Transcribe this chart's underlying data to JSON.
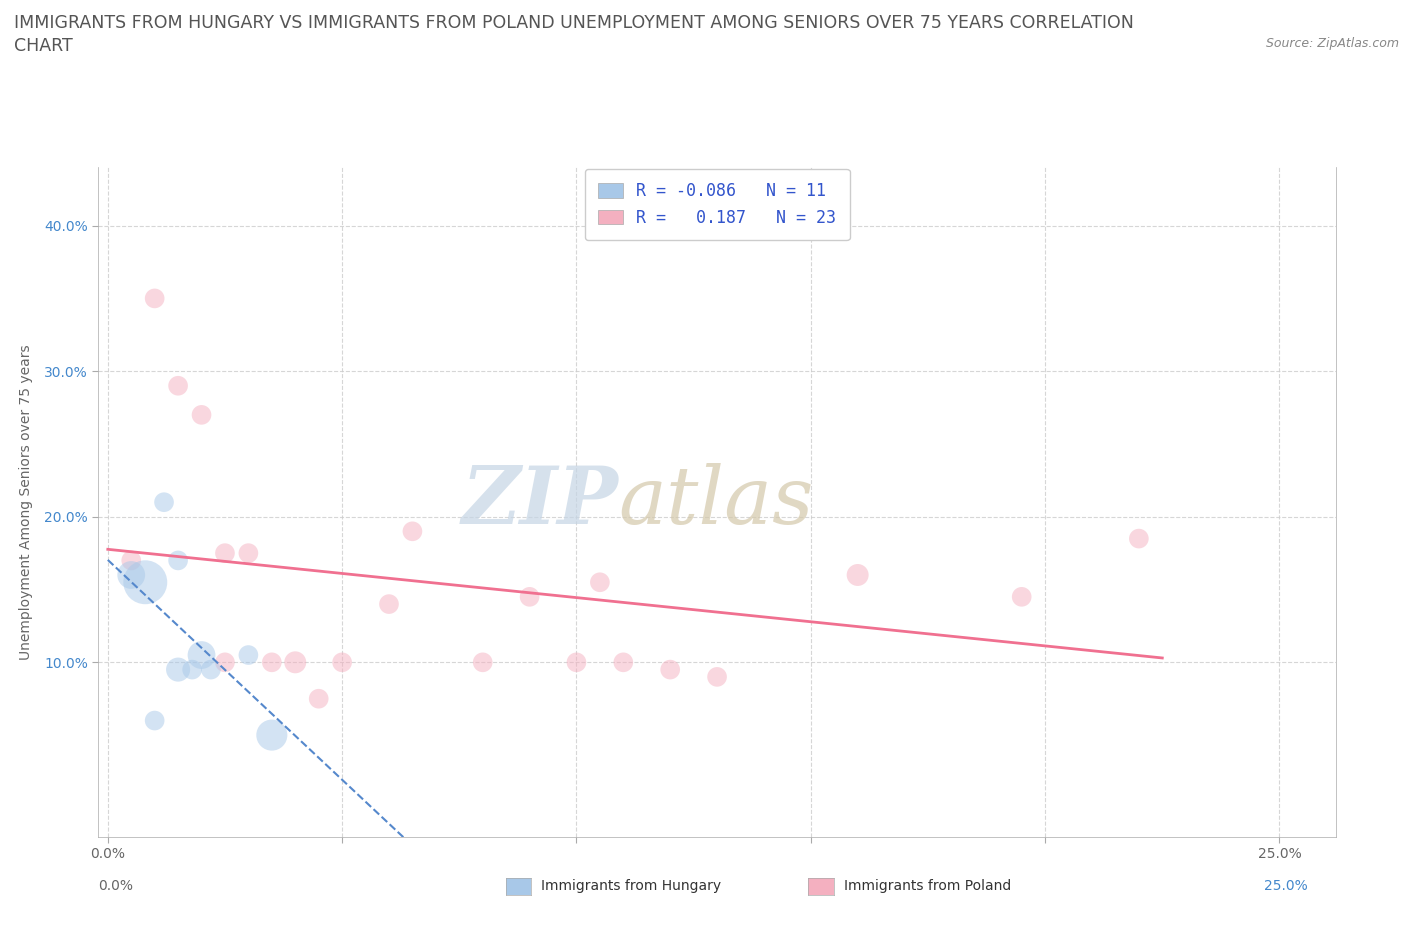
{
  "title_line1": "IMMIGRANTS FROM HUNGARY VS IMMIGRANTS FROM POLAND UNEMPLOYMENT AMONG SENIORS OVER 75 YEARS CORRELATION",
  "title_line2": "CHART",
  "source": "Source: ZipAtlas.com",
  "ylabel": "Unemployment Among Seniors over 75 years",
  "xlim": [
    -0.002,
    0.262
  ],
  "ylim": [
    -0.02,
    0.44
  ],
  "xtick_positions": [
    0.0,
    0.05,
    0.1,
    0.15,
    0.2,
    0.25
  ],
  "xtick_labels": [
    "0.0%",
    "",
    "",
    "",
    "",
    "25.0%"
  ],
  "ytick_positions": [
    0.1,
    0.2,
    0.3,
    0.4
  ],
  "ytick_labels": [
    "10.0%",
    "20.0%",
    "30.0%",
    "40.0%"
  ],
  "hungary_R": -0.086,
  "hungary_N": 11,
  "poland_R": 0.187,
  "poland_N": 23,
  "hungary_color": "#a8c8e8",
  "poland_color": "#f4b0c0",
  "hungary_line_color": "#5588cc",
  "poland_line_color": "#f07090",
  "watermark_zip": "ZIP",
  "watermark_atlas": "atlas",
  "watermark_color_zip": "#c8d8ea",
  "watermark_color_atlas": "#d0c8b8",
  "background_color": "#ffffff",
  "hungary_scatter_x": [
    0.005,
    0.008,
    0.01,
    0.012,
    0.015,
    0.015,
    0.018,
    0.02,
    0.022,
    0.03,
    0.035
  ],
  "hungary_scatter_y": [
    0.16,
    0.155,
    0.06,
    0.21,
    0.17,
    0.095,
    0.095,
    0.105,
    0.095,
    0.105,
    0.05
  ],
  "hungary_scatter_size": [
    400,
    1000,
    200,
    200,
    200,
    300,
    200,
    400,
    200,
    200,
    500
  ],
  "poland_scatter_x": [
    0.005,
    0.01,
    0.015,
    0.02,
    0.025,
    0.025,
    0.03,
    0.035,
    0.04,
    0.045,
    0.05,
    0.06,
    0.065,
    0.08,
    0.09,
    0.1,
    0.105,
    0.11,
    0.12,
    0.13,
    0.16,
    0.195,
    0.22
  ],
  "poland_scatter_y": [
    0.17,
    0.35,
    0.29,
    0.27,
    0.175,
    0.1,
    0.175,
    0.1,
    0.1,
    0.075,
    0.1,
    0.14,
    0.19,
    0.1,
    0.145,
    0.1,
    0.155,
    0.1,
    0.095,
    0.09,
    0.16,
    0.145,
    0.185
  ],
  "poland_scatter_size": [
    200,
    200,
    200,
    200,
    200,
    200,
    200,
    200,
    250,
    200,
    200,
    200,
    200,
    200,
    200,
    200,
    200,
    200,
    200,
    200,
    250,
    200,
    200
  ],
  "grid_color": "#cccccc",
  "title_fontsize": 12.5,
  "axis_label_fontsize": 10,
  "tick_fontsize": 10,
  "legend_text_color": "#3355cc",
  "scatter_alpha": 0.5
}
